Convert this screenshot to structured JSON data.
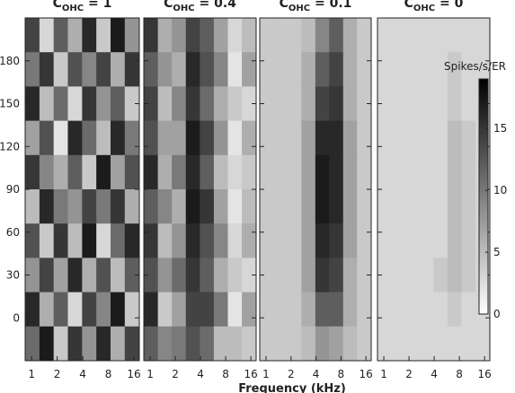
{
  "chart_data": [
    {
      "type": "heatmap",
      "title": "C",
      "title_sub": "OHC",
      "title_rest": " = 1",
      "x": [
        1.02,
        1.5,
        2.2,
        3.24,
        4.76,
        7.0,
        10.3,
        15.1
      ],
      "xlim": [
        0.84,
        18.5
      ],
      "xticks": [
        1,
        2,
        4,
        8,
        16
      ],
      "xscale": "log",
      "y": [
        198,
        174,
        150,
        126,
        102,
        78,
        54,
        30,
        6,
        -18
      ],
      "ylim": [
        -30,
        210
      ],
      "yticks": [
        0,
        30,
        60,
        90,
        120,
        150,
        180
      ],
      "z": [
        [
          14,
          3,
          12,
          6,
          16,
          4,
          17,
          8
        ],
        [
          10,
          15,
          4,
          13,
          9,
          14,
          6,
          15
        ],
        [
          16,
          5,
          11,
          3,
          15,
          8,
          12,
          4
        ],
        [
          7,
          13,
          2,
          16,
          11,
          5,
          16,
          10
        ],
        [
          15,
          9,
          6,
          12,
          4,
          17,
          7,
          13
        ],
        [
          5,
          16,
          10,
          8,
          14,
          10,
          15,
          6
        ],
        [
          13,
          4,
          15,
          5,
          17,
          3,
          11,
          16
        ],
        [
          8,
          14,
          7,
          16,
          6,
          13,
          5,
          12
        ],
        [
          16,
          6,
          12,
          3,
          14,
          9,
          17,
          4
        ],
        [
          11,
          17,
          4,
          15,
          8,
          16,
          6,
          14
        ]
      ]
    },
    {
      "type": "heatmap",
      "title": "C",
      "title_sub": "OHC",
      "title_rest": " = 0.4",
      "x": [
        1.02,
        1.5,
        2.2,
        3.24,
        4.76,
        7.0,
        10.3,
        15.1
      ],
      "xlim": [
        0.84,
        18.5
      ],
      "xticks": [
        1,
        2,
        4,
        8,
        16
      ],
      "xscale": "log",
      "y": [
        198,
        174,
        150,
        126,
        102,
        78,
        54,
        30,
        6,
        -18
      ],
      "ylim": [
        -30,
        210
      ],
      "z": [
        [
          15,
          6,
          8,
          14,
          12,
          7,
          3,
          5
        ],
        [
          12,
          8,
          6,
          16,
          13,
          9,
          2,
          7
        ],
        [
          14,
          5,
          9,
          15,
          11,
          6,
          4,
          3
        ],
        [
          13,
          7,
          7,
          17,
          14,
          8,
          2,
          6
        ],
        [
          16,
          6,
          10,
          16,
          12,
          5,
          3,
          4
        ],
        [
          12,
          9,
          6,
          17,
          15,
          7,
          2,
          5
        ],
        [
          15,
          5,
          8,
          16,
          13,
          9,
          3,
          6
        ],
        [
          13,
          8,
          11,
          15,
          12,
          6,
          4,
          3
        ],
        [
          16,
          4,
          7,
          14,
          14,
          10,
          2,
          7
        ],
        [
          12,
          9,
          10,
          13,
          11,
          5,
          5,
          4
        ]
      ]
    },
    {
      "type": "heatmap",
      "title": "C",
      "title_sub": "OHC",
      "title_rest": " = 0.1",
      "x": [
        1.02,
        1.5,
        2.2,
        3.24,
        4.76,
        7.0,
        10.3,
        15.1
      ],
      "xlim": [
        0.84,
        18.5
      ],
      "xticks": [
        1,
        2,
        4,
        8,
        16
      ],
      "xscale": "log",
      "y": [
        198,
        174,
        150,
        126,
        102,
        78,
        54,
        30,
        6,
        -18
      ],
      "ylim": [
        -30,
        210
      ],
      "z": [
        [
          4,
          4,
          4,
          5,
          9,
          12,
          6,
          4
        ],
        [
          4,
          4,
          4,
          6,
          12,
          14,
          6,
          4
        ],
        [
          4,
          4,
          4,
          6,
          14,
          15,
          6,
          4
        ],
        [
          4,
          4,
          4,
          7,
          16,
          16,
          7,
          4
        ],
        [
          4,
          4,
          4,
          7,
          17,
          16,
          7,
          4
        ],
        [
          4,
          4,
          4,
          7,
          17,
          16,
          7,
          4
        ],
        [
          4,
          4,
          4,
          7,
          16,
          15,
          7,
          4
        ],
        [
          4,
          4,
          4,
          7,
          15,
          14,
          6,
          4
        ],
        [
          4,
          4,
          4,
          6,
          12,
          12,
          6,
          4
        ],
        [
          4,
          4,
          4,
          5,
          8,
          7,
          5,
          4
        ]
      ]
    },
    {
      "type": "heatmap",
      "title": "C",
      "title_sub": "OHC",
      "title_rest": " = 0",
      "x": [
        1.02,
        1.5,
        2.2,
        3.24,
        4.76,
        7.0,
        10.3,
        15.1
      ],
      "xlim": [
        0.84,
        18.5
      ],
      "xticks": [
        1,
        2,
        4,
        8,
        16
      ],
      "xscale": "log",
      "y": [
        198,
        174,
        150,
        126,
        102,
        78,
        54,
        30,
        6,
        -18
      ],
      "ylim": [
        -30,
        210
      ],
      "z": [
        [
          3,
          3,
          3,
          3,
          3,
          3,
          3,
          3
        ],
        [
          3,
          3,
          3,
          3,
          3,
          4,
          3,
          3
        ],
        [
          3,
          3,
          3,
          3,
          3,
          4,
          3,
          3
        ],
        [
          3,
          3,
          3,
          3,
          3,
          5,
          4,
          3
        ],
        [
          3,
          3,
          3,
          3,
          3,
          5,
          4,
          3
        ],
        [
          3,
          3,
          3,
          3,
          3,
          5,
          4,
          3
        ],
        [
          3,
          3,
          3,
          3,
          3,
          5,
          4,
          3
        ],
        [
          3,
          3,
          3,
          3,
          4,
          5,
          4,
          3
        ],
        [
          3,
          3,
          3,
          3,
          3,
          4,
          3,
          3
        ],
        [
          3,
          3,
          3,
          3,
          3,
          3,
          3,
          3
        ]
      ],
      "colorbar": {
        "label": "Spikes/s/ER",
        "lim": [
          0,
          19
        ],
        "ticks": [
          0,
          5,
          10,
          15
        ]
      }
    }
  ],
  "figure": {
    "xlabel": "Frequency (kHz)"
  }
}
